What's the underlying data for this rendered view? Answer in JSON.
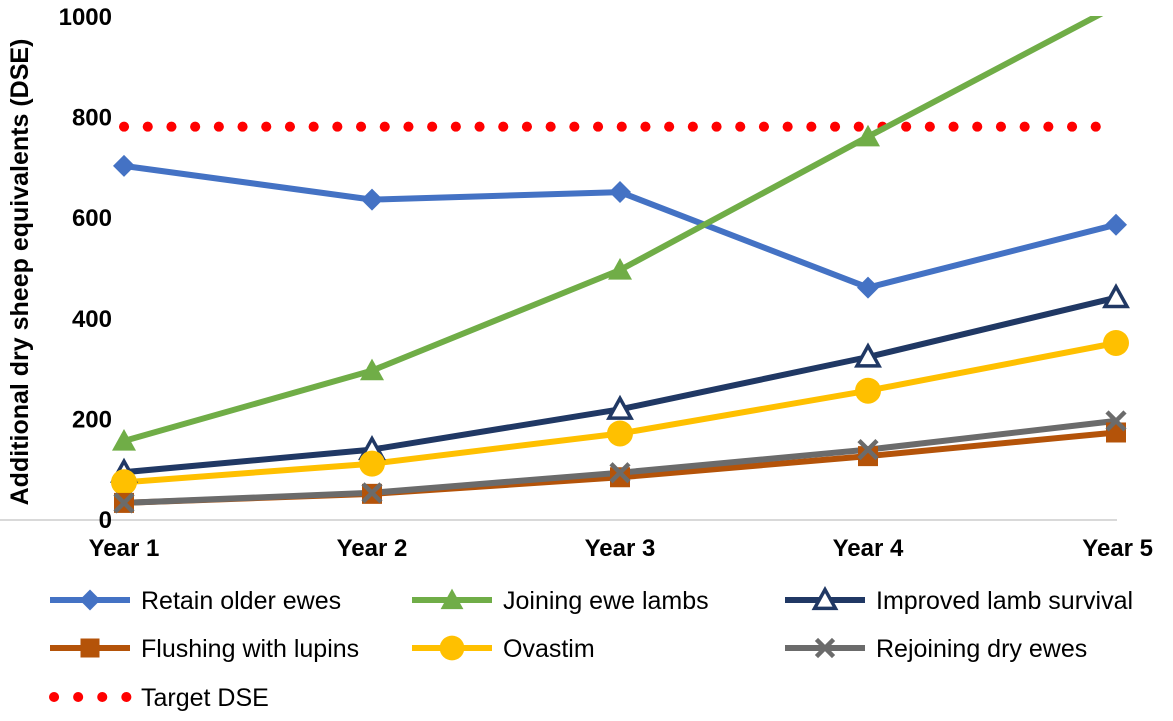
{
  "chart_data": {
    "type": "line",
    "categories": [
      "Year 1",
      "Year 2",
      "Year 3",
      "Year 4",
      "Year 5"
    ],
    "ylabel": "Additional dry sheep equivalents (DSE)",
    "xlabel": "",
    "ylim": [
      0,
      1000
    ],
    "yticks": [
      0,
      200,
      400,
      600,
      800,
      1000
    ],
    "grid": false,
    "legend_position": "bottom",
    "series": [
      {
        "name": "Retain older ewes",
        "values": [
          702,
          635,
          650,
          460,
          585
        ],
        "color": "#4472C4",
        "marker": "diamond"
      },
      {
        "name": "Joining ewe lambs",
        "values": [
          155,
          295,
          495,
          760,
          1020
        ],
        "color": "#70AD47",
        "marker": "triangle-filled"
      },
      {
        "name": "Improved lamb survival",
        "values": [
          93,
          138,
          218,
          322,
          440
        ],
        "color": "#203864",
        "marker": "triangle-open"
      },
      {
        "name": "Flushing with lupins",
        "values": [
          32,
          50,
          83,
          125,
          172
        ],
        "color": "#B45309",
        "marker": "square"
      },
      {
        "name": "Ovastim",
        "values": [
          73,
          110,
          170,
          255,
          350
        ],
        "color": "#FFC000",
        "marker": "circle"
      },
      {
        "name": "Rejoining dry ewes",
        "values": [
          32,
          52,
          92,
          138,
          195
        ],
        "color": "#6B6B6B",
        "marker": "x"
      },
      {
        "name": "Target DSE",
        "values": [
          780,
          780,
          780,
          780,
          780
        ],
        "color": "#FF0000",
        "marker": "dotted-line"
      }
    ]
  }
}
